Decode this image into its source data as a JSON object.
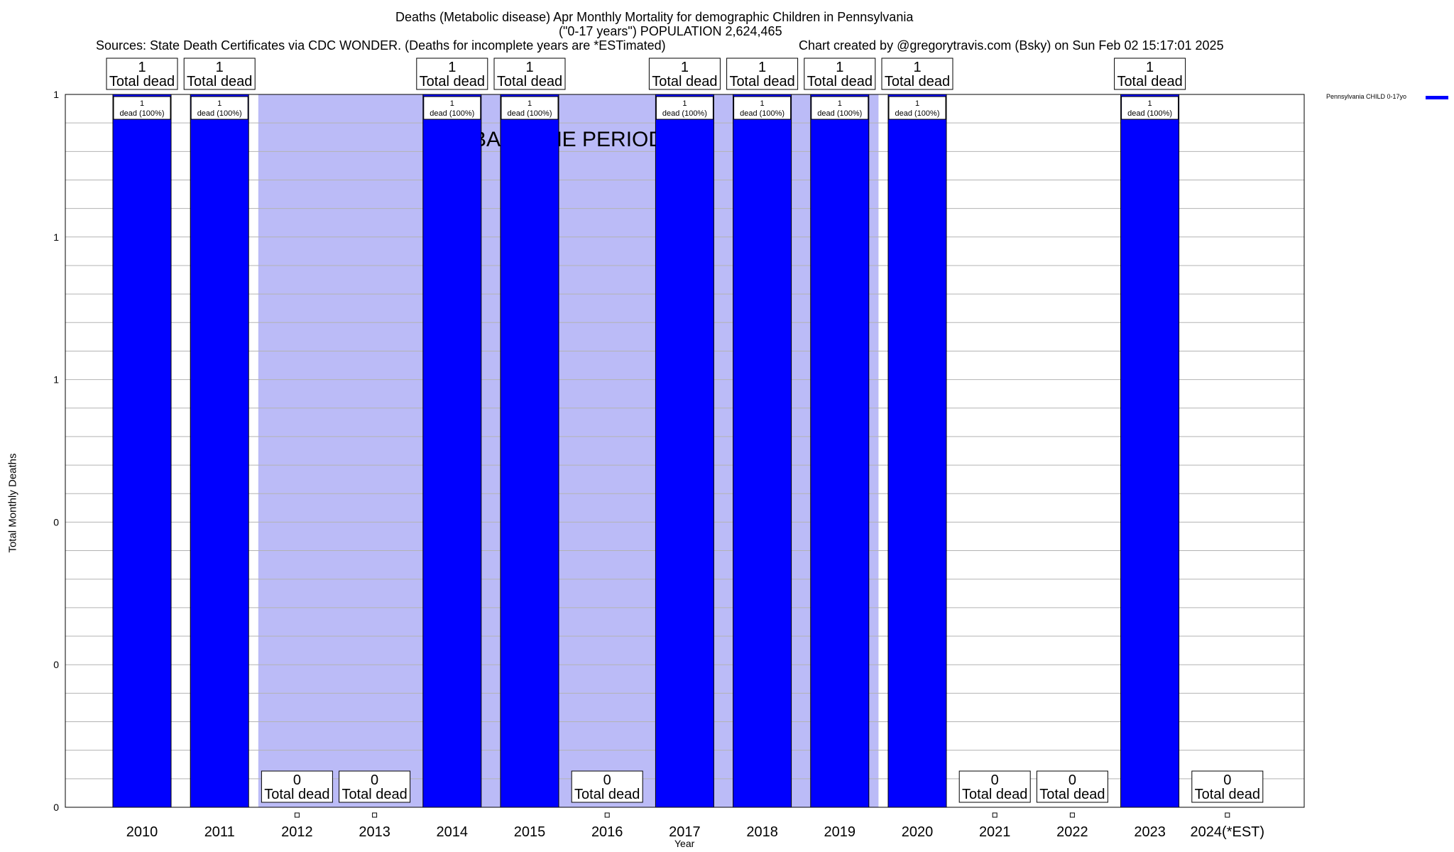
{
  "header": {
    "title_line1": "Deaths (Metabolic disease) Apr Monthly Mortality for demographic Children in Pennsylvania",
    "title_line2": "(\"0-17 years\") POPULATION 2,624,465",
    "sources": "Sources: State Death Certificates via CDC WONDER. (Deaths for incomplete years are *ESTimated)",
    "credit": "Chart created by @gregorytravis.com (Bsky) on Sun Feb 02 15:17:01 2025"
  },
  "chart_data": {
    "type": "bar",
    "title": "Deaths (Metabolic disease) Apr Monthly Mortality for demographic Children in Pennsylvania",
    "xlabel": "Year",
    "ylabel": "Total Monthly Deaths",
    "categories": [
      "2010",
      "2011",
      "2012",
      "2013",
      "2014",
      "2015",
      "2016",
      "2017",
      "2018",
      "2019",
      "2020",
      "2021",
      "2022",
      "2023",
      "2024(*EST)"
    ],
    "series": [
      {
        "name": "Pennsylvania CHILD 0-17yo",
        "color": "#0000ff",
        "values": [
          1,
          1,
          0,
          0,
          1,
          1,
          0,
          1,
          1,
          1,
          1,
          0,
          0,
          1,
          0
        ]
      }
    ],
    "total_labels": [
      "1",
      "1",
      "0",
      "0",
      "1",
      "1",
      "0",
      "1",
      "1",
      "1",
      "1",
      "0",
      "0",
      "1",
      "0"
    ],
    "total_label_suffix": "Total dead",
    "bar_labels": [
      "dead (100%)",
      "dead (100%)",
      "",
      "",
      "dead (100%)",
      "dead (100%)",
      "",
      "dead (100%)",
      "dead (100%)",
      "dead (100%)",
      "dead (100%)",
      "",
      "",
      "dead (100%)",
      ""
    ],
    "ylim": [
      0,
      1
    ],
    "ytick_labels": [
      "0",
      "0",
      "0",
      "1",
      "1",
      "1"
    ],
    "baseline_period": {
      "label": "BASELINE PERIOD",
      "from": "2012",
      "to": "2019",
      "color": "#bbbbf7"
    },
    "grid": true,
    "legend_position": "top-right"
  }
}
